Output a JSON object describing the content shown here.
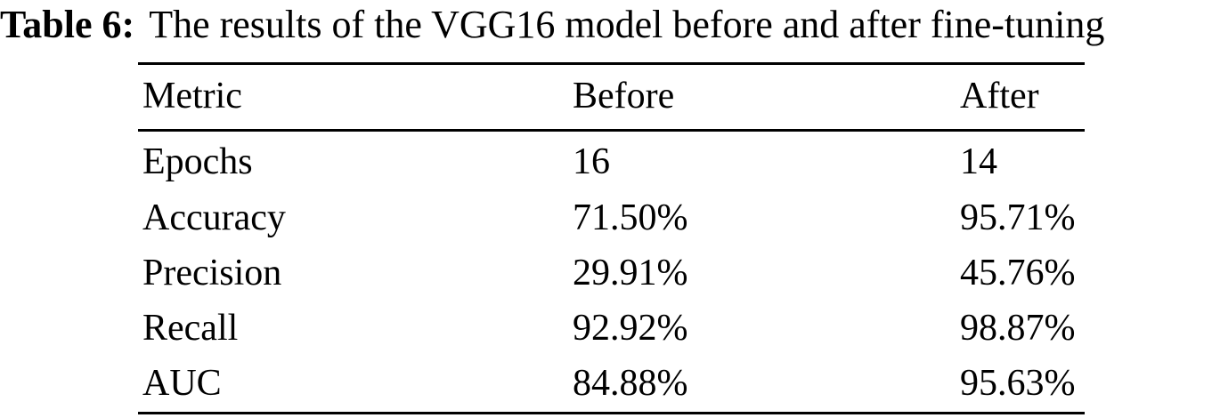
{
  "caption": {
    "label": "Table 6:",
    "text": "The results of the VGG16 model before and after fine-tuning"
  },
  "table": {
    "columns": [
      "Metric",
      "Before",
      "After"
    ],
    "rows": [
      {
        "metric": "Epochs",
        "before": "16",
        "after": "14"
      },
      {
        "metric": "Accuracy",
        "before": "71.50%",
        "after": "95.71%"
      },
      {
        "metric": "Precision",
        "before": "29.91%",
        "after": "45.76%"
      },
      {
        "metric": "Recall",
        "before": "92.92%",
        "after": "98.87%"
      },
      {
        "metric": "AUC",
        "before": "84.88%",
        "after": "95.63%"
      }
    ]
  },
  "colors": {
    "text": "#000000",
    "background": "#ffffff",
    "rule": "#000000"
  }
}
